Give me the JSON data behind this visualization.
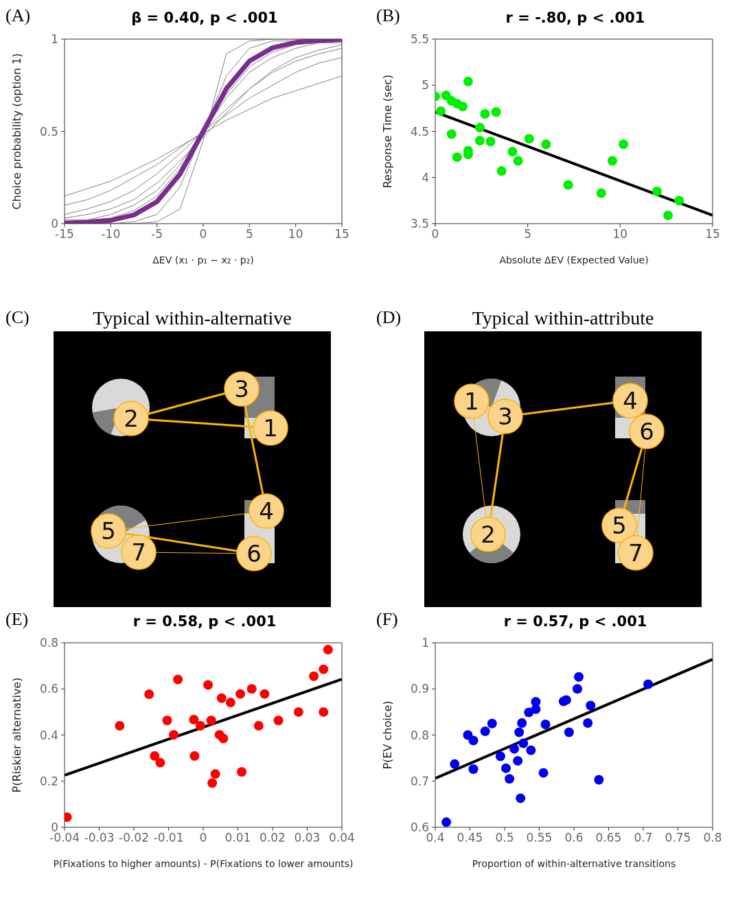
{
  "chart_data": [
    {
      "type": "line",
      "title": "β = 0.40, p < .001",
      "xlabel": "ΔEV (x₁ · p₁ − x₂ · p₂)",
      "ylabel": "Choice probability (option 1)",
      "annotations": [
        "(A)"
      ],
      "x": [
        -15,
        -12.5,
        -10,
        -7.5,
        -5,
        -2.5,
        0,
        2.5,
        5,
        7.5,
        10,
        12.5,
        15
      ],
      "xlim": [
        -15,
        15
      ],
      "xticks": [
        -15,
        -10,
        -5,
        0,
        5,
        10,
        15
      ],
      "ylim": [
        0,
        1
      ],
      "yticks": [
        0,
        0.5,
        1
      ],
      "line_style": "solid",
      "series": [
        {
          "color": "#808080",
          "values": [
            0.15,
            0.19,
            0.23,
            0.29,
            0.35,
            0.42,
            0.49,
            0.56,
            0.62,
            0.68,
            0.72,
            0.76,
            0.8
          ]
        },
        {
          "color": "#808080",
          "values": [
            0.1,
            0.13,
            0.18,
            0.25,
            0.32,
            0.41,
            0.5,
            0.59,
            0.68,
            0.75,
            0.82,
            0.87,
            0.9
          ]
        },
        {
          "color": "#808080",
          "values": [
            0.05,
            0.08,
            0.12,
            0.18,
            0.27,
            0.38,
            0.5,
            0.62,
            0.73,
            0.82,
            0.88,
            0.92,
            0.95
          ]
        },
        {
          "color": "#808080",
          "values": [
            0.01,
            0.02,
            0.05,
            0.1,
            0.18,
            0.32,
            0.5,
            0.68,
            0.82,
            0.9,
            0.95,
            0.98,
            0.99
          ]
        },
        {
          "color": "#808080",
          "values": [
            0.03,
            0.05,
            0.08,
            0.13,
            0.22,
            0.34,
            0.47,
            0.6,
            0.73,
            0.83,
            0.9,
            0.94,
            0.97
          ]
        },
        {
          "color": "#808080",
          "values": [
            0,
            0,
            0,
            0,
            0.01,
            0.08,
            0.45,
            0.92,
            0.99,
            1,
            1,
            1,
            1
          ]
        },
        {
          "color": "#808080",
          "values": [
            0,
            0,
            0,
            0.01,
            0.05,
            0.2,
            0.5,
            0.8,
            0.95,
            0.99,
            0.99,
            0.99,
            0.99
          ]
        },
        {
          "color": "#808080",
          "values": [
            0.02,
            0.02,
            0.03,
            0.07,
            0.15,
            0.3,
            0.5,
            0.7,
            0.85,
            0.93,
            0.97,
            0.98,
            0.98
          ]
        },
        {
          "color": "#7b2d8e",
          "values": [
            0.0025,
            0.0067,
            0.018,
            0.047,
            0.119,
            0.269,
            0.5,
            0.731,
            0.881,
            0.953,
            0.982,
            0.993,
            0.998
          ]
        }
      ]
    },
    {
      "type": "scatter",
      "title": "r = -.80, p < .001",
      "xlabel": "Absolute ΔEV (Expected Value)",
      "ylabel": "Response Time (sec)",
      "annotations": [
        "(B)"
      ],
      "xlim": [
        0,
        15
      ],
      "xticks": [
        0,
        5,
        10,
        15
      ],
      "ylim": [
        3.5,
        5.5
      ],
      "yticks": [
        3.5,
        4,
        4.5,
        5,
        5.5
      ],
      "line_style": "solid",
      "series": [
        {
          "color": "#00ee00",
          "marker": "circle",
          "x": [
            0,
            0.3,
            0.58,
            0.88,
            1.18,
            1.48,
            1.78,
            0.88,
            1.18,
            1.78,
            1.78,
            2.41,
            2.41,
            2.69,
            2.99,
            3.29,
            3.59,
            4.18,
            4.48,
            5.08,
            5.99,
            7.19,
            8.98,
            9.58,
            10.18,
            11.99,
            12.59,
            13.19
          ],
          "values": [
            4.88,
            4.72,
            4.89,
            4.83,
            4.8,
            4.77,
            5.04,
            4.47,
            4.22,
            4.25,
            4.29,
            4.54,
            4.4,
            4.69,
            4.39,
            4.71,
            4.07,
            4.28,
            4.18,
            4.42,
            4.36,
            3.92,
            3.83,
            4.18,
            4.36,
            3.85,
            3.59,
            3.75
          ]
        },
        {
          "type": "line",
          "color": "#000000",
          "x": [
            0,
            15
          ],
          "values": [
            4.71,
            3.59
          ]
        }
      ]
    },
    {
      "type": "other",
      "title": "Typical within-alternative",
      "annotations": [
        "(C)",
        "1",
        "2",
        "3",
        "4",
        "5",
        "6",
        "7"
      ]
    },
    {
      "type": "other",
      "title": "Typical within-attribute",
      "annotations": [
        "(D)",
        "1",
        "2",
        "3",
        "4",
        "5",
        "6",
        "7"
      ]
    },
    {
      "type": "scatter",
      "title": "r = 0.58, p < .001",
      "xlabel": "P(Fixations to higher amounts) - P(Fixations to lower amounts)",
      "ylabel": "P(Riskier alternative)",
      "annotations": [
        "(E)"
      ],
      "xlim": [
        -0.04,
        0.04
      ],
      "xticks": [
        -0.04,
        -0.03,
        -0.02,
        -0.01,
        0,
        0.01,
        0.02,
        0.03,
        0.04
      ],
      "ylim": [
        0,
        0.8
      ],
      "yticks": [
        0,
        0.2,
        0.4,
        0.6,
        0.8
      ],
      "line_style": "solid",
      "series": [
        {
          "color": "#ff0000",
          "marker": "circle",
          "x": [
            -0.0393,
            -0.0241,
            -0.0156,
            -0.014,
            -0.0124,
            -0.0104,
            -0.0085,
            -0.0073,
            -0.0027,
            -0.0025,
            -0.0008,
            0.0014,
            0.0023,
            0.0035,
            0.0026,
            0.0047,
            0.0053,
            0.0058,
            0.0079,
            0.0107,
            0.0111,
            0.014,
            0.016,
            0.0177,
            0.0217,
            0.0275,
            0.0319,
            0.0347,
            0.0347,
            0.036
          ],
          "values": [
            0.044,
            0.44,
            0.577,
            0.309,
            0.28,
            0.463,
            0.401,
            0.641,
            0.467,
            0.309,
            0.44,
            0.617,
            0.463,
            0.231,
            0.192,
            0.401,
            0.56,
            0.385,
            0.541,
            0.578,
            0.24,
            0.6,
            0.44,
            0.578,
            0.463,
            0.5,
            0.655,
            0.685,
            0.5,
            0.77
          ]
        },
        {
          "type": "line",
          "color": "#000000",
          "x": [
            -0.04,
            0.04
          ],
          "values": [
            0.226,
            0.642
          ]
        }
      ]
    },
    {
      "type": "scatter",
      "title": "r = 0.57, p < .001",
      "xlabel": "Proportion of within-alternative transitions",
      "ylabel": "P(EV choice)",
      "annotations": [
        "(F)"
      ],
      "xlim": [
        0.4,
        0.8
      ],
      "xticks": [
        0.4,
        0.45,
        0.5,
        0.55,
        0.6,
        0.65,
        0.7,
        0.75,
        0.8
      ],
      "ylim": [
        0.6,
        1
      ],
      "yticks": [
        0.6,
        0.7,
        0.8,
        0.9,
        1
      ],
      "line_style": "solid",
      "series": [
        {
          "color": "#0000ee",
          "marker": "circle",
          "x": [
            0.416,
            0.428,
            0.447,
            0.455,
            0.455,
            0.472,
            0.482,
            0.494,
            0.502,
            0.507,
            0.514,
            0.519,
            0.521,
            0.523,
            0.525,
            0.527,
            0.535,
            0.538,
            0.545,
            0.545,
            0.556,
            0.559,
            0.585,
            0.589,
            0.593,
            0.605,
            0.607,
            0.62,
            0.624,
            0.636,
            0.707
          ],
          "values": [
            0.611,
            0.737,
            0.8,
            0.788,
            0.726,
            0.808,
            0.825,
            0.754,
            0.728,
            0.705,
            0.77,
            0.744,
            0.806,
            0.663,
            0.826,
            0.782,
            0.849,
            0.767,
            0.856,
            0.872,
            0.718,
            0.823,
            0.873,
            0.876,
            0.806,
            0.9,
            0.926,
            0.826,
            0.864,
            0.703,
            0.91
          ]
        },
        {
          "type": "line",
          "color": "#000000",
          "x": [
            0.4,
            0.8
          ],
          "values": [
            0.706,
            0.964
          ]
        }
      ]
    }
  ]
}
